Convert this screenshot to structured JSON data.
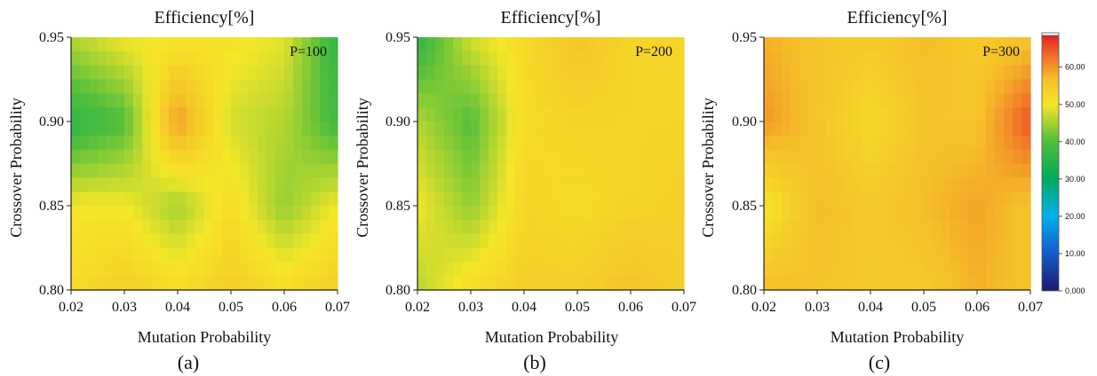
{
  "chart_data": [
    {
      "type": "heatmap",
      "title": "Efficiency[%]",
      "xlabel": "Mutation Probability",
      "ylabel": "Crossover Probability",
      "annotation": "P=100",
      "sublabel": "(a)",
      "x": [
        0.02,
        0.03,
        0.04,
        0.05,
        0.06,
        0.07
      ],
      "y": [
        0.8,
        0.85,
        0.9,
        0.95
      ],
      "xticks": [
        "0.02",
        "0.03",
        "0.04",
        "0.05",
        "0.06",
        "0.07"
      ],
      "yticks": [
        "0.80",
        "0.85",
        "0.90",
        "0.95"
      ],
      "xlim": [
        0.02,
        0.07
      ],
      "ylim": [
        0.8,
        0.95
      ],
      "z": [
        [
          52,
          54,
          52,
          54,
          52,
          54
        ],
        [
          50,
          50,
          45,
          52,
          44,
          50
        ],
        [
          36,
          40,
          60,
          48,
          46,
          38
        ],
        [
          46,
          50,
          50,
          51,
          49,
          36
        ]
      ]
    },
    {
      "type": "heatmap",
      "title": "Efficiency[%]",
      "xlabel": "Mutation Probability",
      "ylabel": "Crossover Probability",
      "annotation": "P=200",
      "sublabel": "(b)",
      "x": [
        0.02,
        0.03,
        0.04,
        0.05,
        0.06,
        0.07
      ],
      "y": [
        0.8,
        0.85,
        0.9,
        0.95
      ],
      "xticks": [
        "0.02",
        "0.03",
        "0.04",
        "0.05",
        "0.06",
        "0.07"
      ],
      "yticks": [
        "0.80",
        "0.85",
        "0.90",
        "0.95"
      ],
      "xlim": [
        0.02,
        0.07
      ],
      "ylim": [
        0.8,
        0.95
      ],
      "z": [
        [
          46,
          52,
          54,
          54,
          56,
          54
        ],
        [
          50,
          44,
          53,
          52,
          53,
          54
        ],
        [
          46,
          40,
          52,
          53,
          53,
          53
        ],
        [
          36,
          48,
          52,
          56,
          53,
          53
        ]
      ]
    },
    {
      "type": "heatmap",
      "title": "Efficiency[%]",
      "xlabel": "Mutation Probability",
      "ylabel": "Crossover Probability",
      "annotation": "P=300",
      "sublabel": "(c)",
      "x": [
        0.02,
        0.03,
        0.04,
        0.05,
        0.06,
        0.07
      ],
      "y": [
        0.8,
        0.85,
        0.9,
        0.95
      ],
      "xticks": [
        "0.02",
        "0.03",
        "0.04",
        "0.05",
        "0.06",
        "0.07"
      ],
      "yticks": [
        "0.80",
        "0.85",
        "0.90",
        "0.95"
      ],
      "xlim": [
        0.02,
        0.07
      ],
      "ylim": [
        0.8,
        0.95
      ],
      "z": [
        [
          57,
          56,
          55,
          55,
          58,
          56
        ],
        [
          50,
          57,
          55,
          57,
          59,
          56
        ],
        [
          60,
          56,
          52,
          56,
          56,
          65
        ],
        [
          58,
          56,
          55,
          57,
          55,
          56
        ]
      ]
    }
  ],
  "colorbar": {
    "ticks": [
      "0.000",
      "10.00",
      "20.00",
      "30.00",
      "40.00",
      "50.00",
      "60.00"
    ],
    "values": [
      0,
      10,
      20,
      30,
      40,
      50,
      60
    ],
    "range": [
      0,
      68.5
    ]
  }
}
